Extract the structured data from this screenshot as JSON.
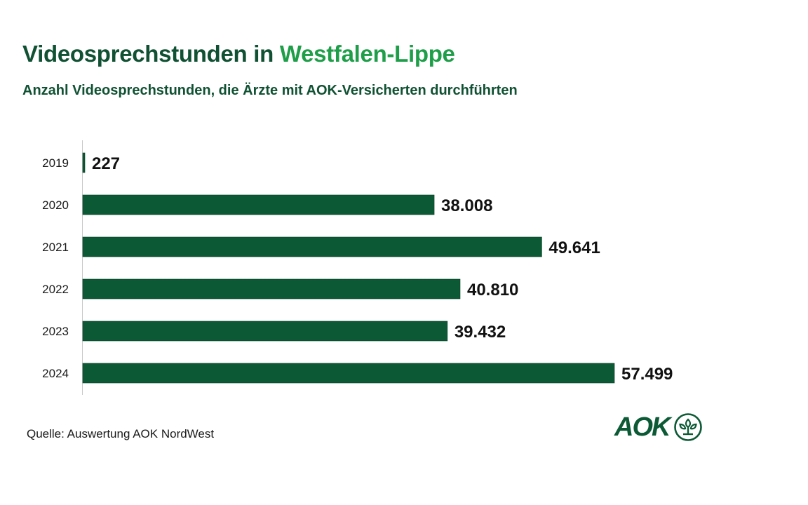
{
  "header": {
    "title_main": "Videosprechstunden in ",
    "title_accent": "Westfalen-Lippe",
    "subtitle": "Anzahl Videosprechstunden, die Ärzte mit AOK-Versicherten durchführten"
  },
  "footer": {
    "source": "Quelle: Auswertung AOK NordWest",
    "logo_text": "AOK",
    "logo_icon": "aok-tree-icon"
  },
  "colors": {
    "bar": "#0b5a35",
    "title": "#0f5132",
    "accent": "#1e9e48",
    "axis": "#c8c8c8",
    "label": "#1a1a1a"
  },
  "chart_data": {
    "type": "bar",
    "orientation": "horizontal",
    "title": "Videosprechstunden in Westfalen-Lippe",
    "subtitle": "Anzahl Videosprechstunden, die Ärzte mit AOK-Versicherten durchführten",
    "categories": [
      "2019",
      "2020",
      "2021",
      "2022",
      "2023",
      "2024"
    ],
    "values": [
      227,
      38008,
      49641,
      40810,
      39432,
      57499
    ],
    "value_labels": [
      "227",
      "38.008",
      "49.641",
      "40.810",
      "39.432",
      "57.499"
    ],
    "xlabel": "",
    "ylabel": "",
    "xlim": [
      0,
      57499
    ],
    "grid": false,
    "legend": "none"
  }
}
